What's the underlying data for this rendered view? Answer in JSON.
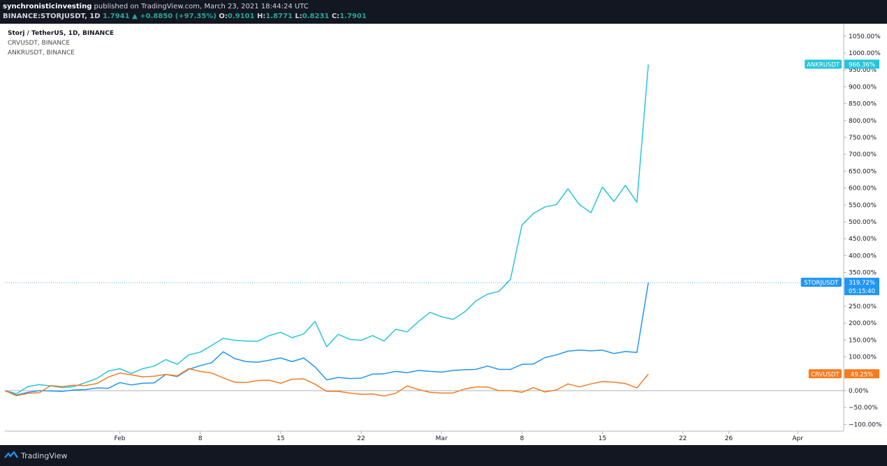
{
  "header": {
    "author": "synchronisticinvesting",
    "published_text": "published on TradingView.com, March 23, 2021 18:44:24 UTC",
    "symbol": "BINANCE:STORJUSDT, 1D",
    "last": "1.7941",
    "change_arrow": "▲",
    "change": "+0.8850 (+97.35%)",
    "o_label": "O:",
    "o_value": "0.9101",
    "h_label": "H:",
    "h_value": "1.8771",
    "l_label": "L:",
    "l_value": "0.8231",
    "c_label": "C:",
    "c_value": "1.7901"
  },
  "legend": {
    "line1": "Storj / TetherUS, 1D, BINANCE",
    "line2": "CRVUSDT, BINANCE",
    "line3": "ANKRUSDT, BINANCE"
  },
  "footer": {
    "brand": "TradingView",
    "logo_icon": "tradingview-logo-icon"
  },
  "chart_data": {
    "type": "line",
    "y_unit": "%",
    "ylim": [
      -110,
      1080
    ],
    "y_ticks": [
      -100,
      -50,
      0,
      50,
      100,
      150,
      200,
      250,
      300,
      350,
      400,
      450,
      500,
      550,
      600,
      650,
      700,
      750,
      800,
      850,
      900,
      950,
      1000,
      1050
    ],
    "y_tick_labels": [
      "−100.00%",
      "−50.00%",
      "0.00%",
      "50.00%",
      "100.00%",
      "150.00%",
      "200.00%",
      "250.00%",
      "300.00%",
      "350.00%",
      "400.00%",
      "450.00%",
      "500.00%",
      "550.00%",
      "600.00%",
      "650.00%",
      "700.00%",
      "750.00%",
      "800.00%",
      "850.00%",
      "900.00%",
      "950.00%",
      "1000.00%",
      "1050.00%"
    ],
    "x_start": "2021-01-22",
    "x_end": "2021-04-05",
    "x_ticks": [
      {
        "date": "2021-02-01",
        "label": "Feb"
      },
      {
        "date": "2021-02-08",
        "label": "8"
      },
      {
        "date": "2021-02-15",
        "label": "15"
      },
      {
        "date": "2021-02-22",
        "label": "22"
      },
      {
        "date": "2021-03-01",
        "label": "Mar"
      },
      {
        "date": "2021-03-08",
        "label": "8"
      },
      {
        "date": "2021-03-15",
        "label": "15"
      },
      {
        "date": "2021-03-22",
        "label": "22"
      },
      {
        "date": "2021-03-26",
        "label": "26"
      },
      {
        "date": "2021-04-01",
        "label": "Apr"
      }
    ],
    "grid": false,
    "x_first": "2021-01-22",
    "series": [
      {
        "name": "ANKRUSDT",
        "color": "#26c6da",
        "label_value": "966.36%",
        "values": [
          0,
          -9,
          12,
          18,
          14,
          9,
          12,
          24,
          36,
          58,
          65,
          51,
          65,
          73,
          92,
          78,
          106,
          114,
          134,
          155,
          149,
          147,
          146,
          163,
          173,
          157,
          168,
          205,
          130,
          167,
          152,
          149,
          163,
          147,
          182,
          174,
          205,
          232,
          219,
          211,
          233,
          266,
          286,
          294,
          330,
          490,
          525,
          544,
          551,
          598,
          551,
          527,
          603,
          560,
          608,
          558,
          966
        ]
      },
      {
        "name": "STORJUSDT",
        "color": "#2196f3",
        "label_value": "319.72%",
        "label_sub": "05:15:40",
        "values": [
          0,
          -13,
          -5,
          0,
          -1,
          -2,
          2,
          3,
          8,
          7,
          24,
          17,
          22,
          23,
          48,
          42,
          63,
          74,
          83,
          115,
          95,
          86,
          84,
          90,
          97,
          86,
          97,
          70,
          32,
          39,
          36,
          37,
          49,
          50,
          57,
          53,
          60,
          57,
          55,
          60,
          62,
          63,
          73,
          63,
          63,
          78,
          79,
          98,
          106,
          117,
          120,
          118,
          120,
          110,
          116,
          113,
          320
        ]
      },
      {
        "name": "CRVUSDT",
        "color": "#f57c20",
        "label_value": "49.25%",
        "values": [
          0,
          -15,
          -8,
          -6,
          15,
          12,
          16,
          15,
          21,
          40,
          52,
          47,
          41,
          43,
          48,
          44,
          65,
          57,
          52,
          38,
          25,
          24,
          30,
          31,
          22,
          34,
          35,
          19,
          -2,
          -2,
          -7,
          -11,
          -10,
          -16,
          -8,
          14,
          3,
          -5,
          -7,
          -7,
          5,
          11,
          11,
          0,
          0,
          -5,
          9,
          -4,
          2,
          20,
          11,
          20,
          27,
          25,
          21,
          8,
          49
        ]
      }
    ]
  }
}
